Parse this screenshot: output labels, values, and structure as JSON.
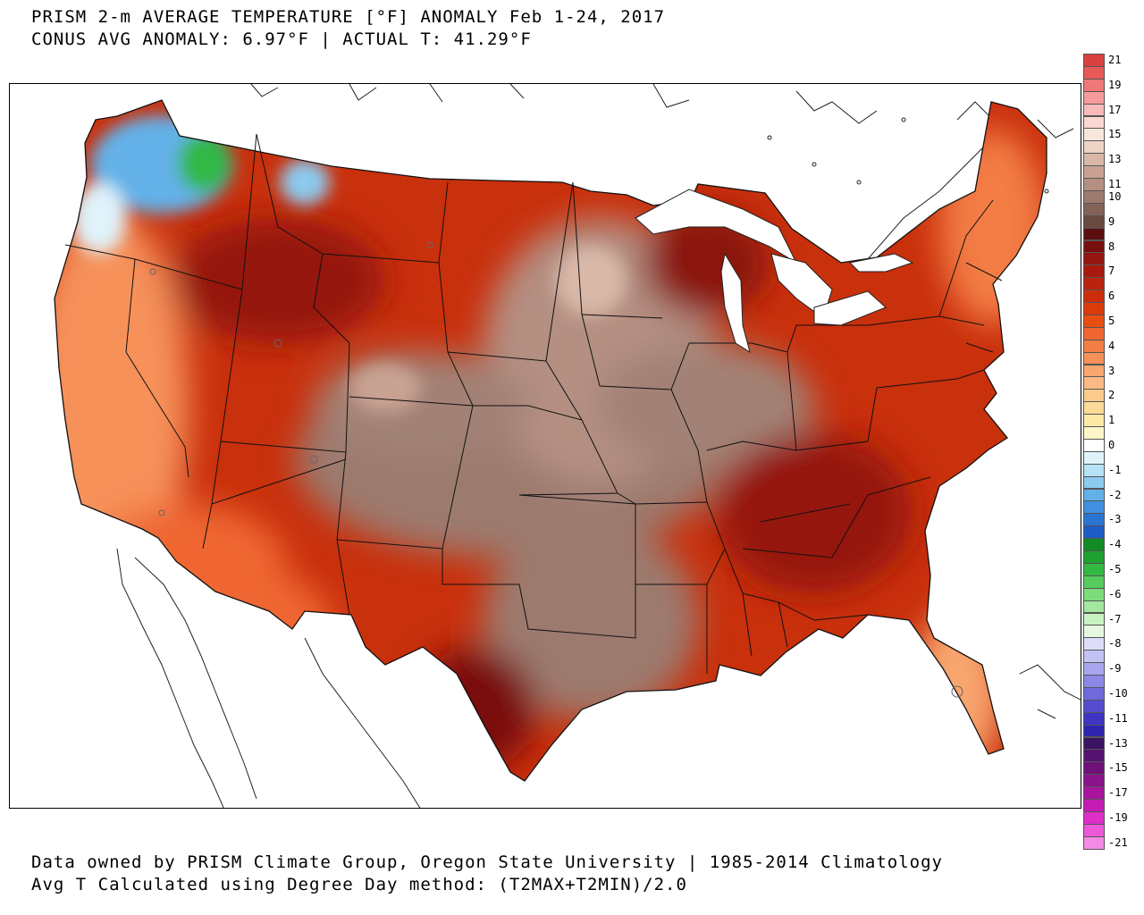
{
  "header": {
    "title": "PRISM 2-m AVERAGE TEMPERATURE [°F] ANOMALY Feb 1-24, 2017",
    "subtitle": "CONUS AVG ANOMALY: 6.97°F | ACTUAL T: 41.29°F"
  },
  "footer": {
    "line1": "Data owned by PRISM Climate Group, Oregon State University | 1985-2014 Climatology",
    "line2": "Avg T Calculated using Degree Day method: (T2MAX+T2MIN)/2.0"
  },
  "legend": {
    "unit": "°F anomaly",
    "bins": [
      {
        "color": "#d94141",
        "label": "21"
      },
      {
        "color": "#e85a5a",
        "label": ""
      },
      {
        "color": "#f07878",
        "label": "19"
      },
      {
        "color": "#f59b9b",
        "label": ""
      },
      {
        "color": "#f9baba",
        "label": "17"
      },
      {
        "color": "#fcd8d3",
        "label": ""
      },
      {
        "color": "#f7e6dc",
        "label": "15"
      },
      {
        "color": "#ecd4c6",
        "label": ""
      },
      {
        "color": "#d9b8a8",
        "label": "13"
      },
      {
        "color": "#c9a293",
        "label": ""
      },
      {
        "color": "#b48f82",
        "label": "11"
      },
      {
        "color": "#9c7a6e",
        "label": "10"
      },
      {
        "color": "#836258",
        "label": ""
      },
      {
        "color": "#6a4a40",
        "label": "9"
      },
      {
        "color": "#5b0f0f",
        "label": ""
      },
      {
        "color": "#780f0f",
        "label": "8"
      },
      {
        "color": "#951510",
        "label": ""
      },
      {
        "color": "#a8190e",
        "label": "7"
      },
      {
        "color": "#bb230e",
        "label": ""
      },
      {
        "color": "#cc2e0c",
        "label": "6"
      },
      {
        "color": "#dc3b0c",
        "label": ""
      },
      {
        "color": "#e84e10",
        "label": "5"
      },
      {
        "color": "#ef6630",
        "label": ""
      },
      {
        "color": "#f37d45",
        "label": "4"
      },
      {
        "color": "#f6915a",
        "label": ""
      },
      {
        "color": "#f8a56e",
        "label": "3"
      },
      {
        "color": "#fab985",
        "label": ""
      },
      {
        "color": "#fbcb8d",
        "label": "2"
      },
      {
        "color": "#fcdb99",
        "label": ""
      },
      {
        "color": "#fde9a6",
        "label": "1"
      },
      {
        "color": "#fdf6c9",
        "label": ""
      },
      {
        "color": "#ffffff",
        "label": "0"
      },
      {
        "color": "#dff3fb",
        "label": ""
      },
      {
        "color": "#b6e2f5",
        "label": "-1"
      },
      {
        "color": "#8ccaee",
        "label": ""
      },
      {
        "color": "#63b1e8",
        "label": "-2"
      },
      {
        "color": "#4190df",
        "label": ""
      },
      {
        "color": "#2c74d2",
        "label": "-3"
      },
      {
        "color": "#1c5cc4",
        "label": ""
      },
      {
        "color": "#138a24",
        "label": "-4"
      },
      {
        "color": "#1fa030",
        "label": ""
      },
      {
        "color": "#33b844",
        "label": "-5"
      },
      {
        "color": "#55cc5e",
        "label": ""
      },
      {
        "color": "#7edb7c",
        "label": "-6"
      },
      {
        "color": "#a4e7a0",
        "label": ""
      },
      {
        "color": "#c8f2c2",
        "label": "-7"
      },
      {
        "color": "#e6f8e2",
        "label": ""
      },
      {
        "color": "#dcdcf8",
        "label": "-8"
      },
      {
        "color": "#c2c2f3",
        "label": ""
      },
      {
        "color": "#a9a6ee",
        "label": "-9"
      },
      {
        "color": "#8c88e6",
        "label": ""
      },
      {
        "color": "#6f69dc",
        "label": "-10"
      },
      {
        "color": "#564cd0",
        "label": ""
      },
      {
        "color": "#3f33c2",
        "label": "-11"
      },
      {
        "color": "#2e24b0",
        "label": ""
      },
      {
        "color": "#3a1460",
        "label": "-13"
      },
      {
        "color": "#54136e",
        "label": ""
      },
      {
        "color": "#6e1178",
        "label": "-15"
      },
      {
        "color": "#8a128a",
        "label": ""
      },
      {
        "color": "#a8149e",
        "label": "-17"
      },
      {
        "color": "#c41cb4",
        "label": ""
      },
      {
        "color": "#dd2ec8",
        "label": "-19"
      },
      {
        "color": "#ec58d8",
        "label": ""
      },
      {
        "color": "#f58ae4",
        "label": "-21"
      }
    ]
  }
}
